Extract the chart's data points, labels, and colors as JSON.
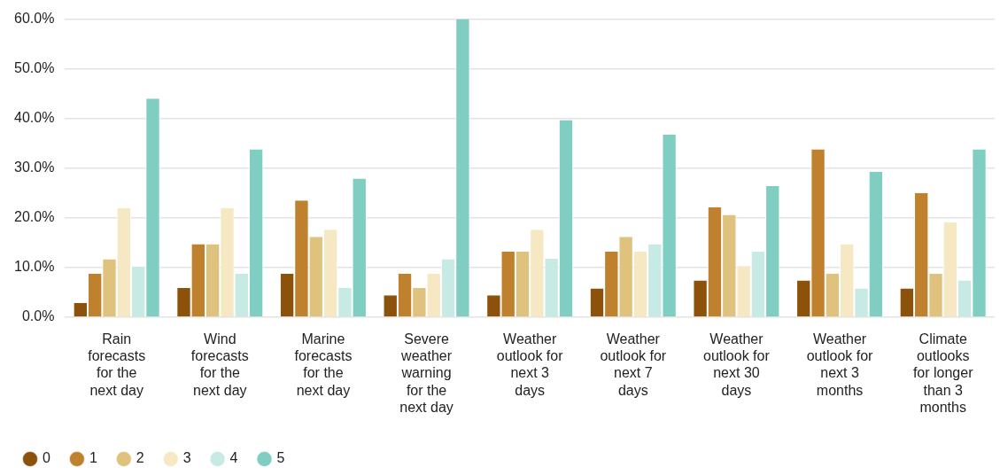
{
  "chart_data": {
    "type": "bar",
    "categories": [
      "Rain\nforecasts\nfor the\nnext day",
      "Wind\nforecasts\nfor the\nnext day",
      "Marine\nforecasts\nfor the\nnext day",
      "Severe\nweather\nwarning\nfor the\nnext day",
      "Weather\noutlook for\nnext 3\ndays",
      "Weather\noutlook for\nnext 7\ndays",
      "Weather\noutlook for\nnext 30\ndays",
      "Weather\noutlook for\nnext 3\nmonths",
      "Climate\noutlooks\nfor longer\nthan 3\nmonths"
    ],
    "series": [
      {
        "name": "0",
        "color": "#8c510a",
        "values": [
          2.9,
          5.9,
          8.8,
          4.4,
          4.4,
          5.8,
          7.4,
          7.4,
          5.8
        ]
      },
      {
        "name": "1",
        "color": "#bf812d",
        "values": [
          8.8,
          14.7,
          23.5,
          8.8,
          13.2,
          13.2,
          22.1,
          33.8,
          25.0
        ]
      },
      {
        "name": "2",
        "color": "#dfc27d",
        "values": [
          11.7,
          14.7,
          16.2,
          5.9,
          13.2,
          16.2,
          20.6,
          8.8,
          8.8
        ]
      },
      {
        "name": "3",
        "color": "#f6e8c3",
        "values": [
          22.0,
          22.0,
          17.6,
          8.8,
          17.6,
          13.2,
          10.3,
          14.7,
          19.1
        ]
      },
      {
        "name": "4",
        "color": "#c7eae5",
        "values": [
          10.2,
          8.8,
          5.9,
          11.7,
          11.8,
          14.7,
          13.2,
          5.8,
          7.4
        ]
      },
      {
        "name": "5",
        "color": "#80cdc1",
        "values": [
          44.0,
          33.8,
          27.9,
          60.0,
          39.7,
          36.8,
          26.4,
          29.3,
          33.8
        ]
      }
    ],
    "ylim": [
      0,
      60
    ],
    "yticks": [
      {
        "value": 0,
        "label": "0.0%"
      },
      {
        "value": 10,
        "label": "10.0%"
      },
      {
        "value": 20,
        "label": "20.0%"
      },
      {
        "value": 30,
        "label": "30.0%"
      },
      {
        "value": 40,
        "label": "40.0%"
      },
      {
        "value": 50,
        "label": "50.0%"
      },
      {
        "value": 60,
        "label": "60.0%"
      }
    ],
    "grid": "y",
    "legend": "bottom left"
  }
}
